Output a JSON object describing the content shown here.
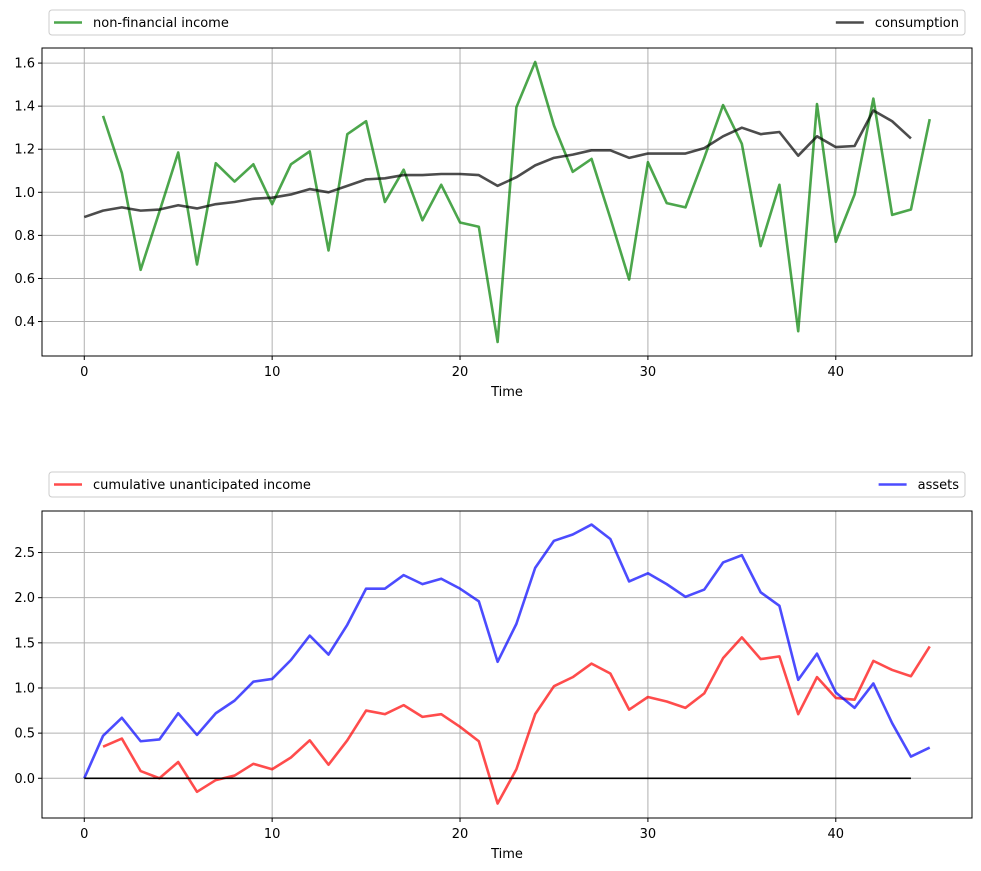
{
  "chart_data": [
    {
      "type": "line",
      "xlabel": "Time",
      "ylabel": "",
      "xlim": [
        -2.25,
        47.25
      ],
      "ylim": [
        0.24,
        1.67
      ],
      "xticks": [
        0,
        10,
        20,
        30,
        40
      ],
      "yticks": [
        0.4,
        0.6,
        0.8,
        1.0,
        1.2,
        1.4,
        1.6
      ],
      "ytick_labels": [
        "0.4",
        "0.6",
        "0.8",
        "1.0",
        "1.2",
        "1.4",
        "1.6"
      ],
      "grid": true,
      "legend": {
        "placement": "above plot, expanded",
        "entries": [
          "non-financial income",
          "consumption"
        ]
      },
      "series": [
        {
          "name": "non-financial income",
          "color": "#008000",
          "x": [
            1,
            2,
            3,
            4,
            5,
            6,
            7,
            8,
            9,
            10,
            11,
            12,
            13,
            14,
            15,
            16,
            17,
            18,
            19,
            20,
            21,
            22,
            23,
            24,
            25,
            26,
            27,
            28,
            29,
            30,
            31,
            32,
            33,
            34,
            35,
            36,
            37,
            38,
            39,
            40,
            41,
            42,
            43,
            44,
            45
          ],
          "values": [
            1.355,
            1.09,
            0.64,
            0.91,
            1.185,
            0.665,
            1.135,
            1.05,
            1.13,
            0.945,
            1.13,
            1.19,
            0.73,
            1.27,
            1.33,
            0.955,
            1.105,
            0.87,
            1.035,
            0.86,
            0.84,
            0.305,
            1.395,
            1.605,
            1.31,
            1.095,
            1.155,
            0.88,
            0.595,
            1.14,
            0.95,
            0.93,
            1.16,
            1.405,
            1.225,
            0.75,
            1.035,
            0.355,
            1.41,
            0.77,
            0.99,
            1.435,
            0.895,
            0.92,
            1.34
          ]
        },
        {
          "name": "consumption",
          "color": "#000000",
          "x": [
            0,
            1,
            2,
            3,
            4,
            5,
            6,
            7,
            8,
            9,
            10,
            11,
            12,
            13,
            14,
            15,
            16,
            17,
            18,
            19,
            20,
            21,
            22,
            23,
            24,
            25,
            26,
            27,
            28,
            29,
            30,
            31,
            32,
            33,
            34,
            35,
            36,
            37,
            38,
            39,
            40,
            41,
            42,
            43,
            44
          ],
          "values": [
            0.885,
            0.915,
            0.93,
            0.915,
            0.92,
            0.94,
            0.925,
            0.945,
            0.955,
            0.97,
            0.975,
            0.99,
            1.015,
            1.0,
            1.03,
            1.06,
            1.065,
            1.08,
            1.08,
            1.085,
            1.085,
            1.08,
            1.03,
            1.07,
            1.125,
            1.16,
            1.175,
            1.195,
            1.195,
            1.16,
            1.18,
            1.18,
            1.18,
            1.205,
            1.26,
            1.3,
            1.27,
            1.28,
            1.17,
            1.26,
            1.21,
            1.215,
            1.38,
            1.33,
            1.25
          ]
        }
      ]
    },
    {
      "type": "line",
      "xlabel": "Time",
      "ylabel": "",
      "xlim": [
        -2.25,
        47.25
      ],
      "ylim": [
        -0.44,
        2.96
      ],
      "xticks": [
        0,
        10,
        20,
        30,
        40
      ],
      "yticks": [
        0.0,
        0.5,
        1.0,
        1.5,
        2.0,
        2.5
      ],
      "ytick_labels": [
        "0.0",
        "0.5",
        "1.0",
        "1.5",
        "2.0",
        "2.5"
      ],
      "grid": true,
      "legend": {
        "placement": "above plot, expanded",
        "entries": [
          "cumulative unanticipated income",
          "assets"
        ]
      },
      "series": [
        {
          "name": "cumulative unanticipated income",
          "color": "#ff0000",
          "x": [
            1,
            2,
            3,
            4,
            5,
            6,
            7,
            8,
            9,
            10,
            11,
            12,
            13,
            14,
            15,
            16,
            17,
            18,
            19,
            20,
            21,
            22,
            23,
            24,
            25,
            26,
            27,
            28,
            29,
            30,
            31,
            32,
            33,
            34,
            35,
            36,
            37,
            38,
            39,
            40,
            41,
            42,
            43,
            44,
            45
          ],
          "values": [
            0.35,
            0.44,
            0.08,
            0.0,
            0.18,
            -0.15,
            -0.02,
            0.03,
            0.16,
            0.1,
            0.23,
            0.42,
            0.15,
            0.42,
            0.75,
            0.71,
            0.81,
            0.68,
            0.71,
            0.57,
            0.41,
            -0.28,
            0.1,
            0.71,
            1.02,
            1.12,
            1.27,
            1.16,
            0.76,
            0.9,
            0.85,
            0.78,
            0.94,
            1.33,
            1.56,
            1.32,
            1.35,
            0.71,
            1.12,
            0.89,
            0.87,
            1.3,
            1.2,
            1.13,
            1.46
          ]
        },
        {
          "name": "assets",
          "color": "#0000ff",
          "x": [
            0,
            1,
            2,
            3,
            4,
            5,
            6,
            7,
            8,
            9,
            10,
            11,
            12,
            13,
            14,
            15,
            16,
            17,
            18,
            19,
            20,
            21,
            22,
            23,
            24,
            25,
            26,
            27,
            28,
            29,
            30,
            31,
            32,
            33,
            34,
            35,
            36,
            37,
            38,
            39,
            40,
            41,
            42,
            43,
            44,
            45
          ],
          "values": [
            0.0,
            0.47,
            0.67,
            0.41,
            0.43,
            0.72,
            0.48,
            0.72,
            0.86,
            1.07,
            1.1,
            1.31,
            1.58,
            1.37,
            1.7,
            2.1,
            2.1,
            2.25,
            2.15,
            2.21,
            2.1,
            1.96,
            1.29,
            1.71,
            2.33,
            2.63,
            2.7,
            2.81,
            2.65,
            2.18,
            2.27,
            2.15,
            2.01,
            2.09,
            2.39,
            2.47,
            2.06,
            1.91,
            1.09,
            1.38,
            0.95,
            0.78,
            1.05,
            0.61,
            0.24,
            0.34
          ]
        },
        {
          "name": "",
          "color": "#000000",
          "x": [
            0,
            44
          ],
          "values": [
            0.0,
            0.0
          ]
        }
      ]
    }
  ]
}
